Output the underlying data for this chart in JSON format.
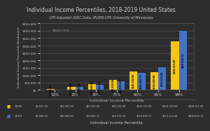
{
  "title": "Individual Income Percentiles, 2018-2019 United States",
  "subtitle": "CPI-Adjusted ASEC Data, IPUMS-CPS University of Minnesota",
  "xlabel": "Individual Income Percentile",
  "ylabel": "Individual Income Percentile Breakpoint",
  "categories": [
    "10%",
    "25%",
    "50%",
    "75%",
    "90%",
    "95%",
    "99%"
  ],
  "values_2018": [
    8501.0,
    22000.0,
    40100.0,
    70125.0,
    126150.0,
    118160.0,
    328311.0
  ],
  "values_2019": [
    2046.0,
    20482.65,
    36000.31,
    56672.31,
    116418.71,
    153122.44,
    400830.74
  ],
  "bar_color_2018": "#F5C518",
  "bar_color_2019": "#4472C4",
  "background_color": "#2d2d2d",
  "text_color": "#CCCCCC",
  "grid_color": "#555555",
  "watermark": "dqyd.com",
  "ylim": [
    0,
    450000
  ],
  "yticks": [
    0,
    50000,
    100000,
    150000,
    200000,
    250000,
    300000,
    350000,
    400000,
    450000
  ],
  "bar_labels_2018": [
    "$8,501.00",
    "$22,000.00",
    "$40,100.00",
    "$70,125.00",
    "$126,150.00",
    "$118,160.00",
    "$328,311.00"
  ],
  "bar_labels_2019": [
    "$2,046.00",
    "$20,482.65",
    "$36,000.31",
    "$56,672.31",
    "$116,418.71",
    "$153,122.44",
    "$400,830.74"
  ],
  "legend_row1": [
    "2018",
    "$8,501.00",
    "$22,000.00",
    "$40,100.00",
    "$70,125.00",
    "$126,150.00",
    "$118,160.00",
    "$328,311.00"
  ],
  "legend_row2": [
    "2019",
    "$2,046.00",
    "$20,482.65",
    "$36,000.31",
    "$56,672.31",
    "$116,418.71",
    "$153,122.44",
    "$400,830.74"
  ]
}
